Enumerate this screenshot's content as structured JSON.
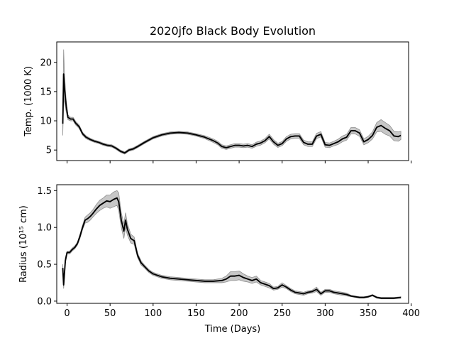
{
  "chart_data": {
    "type": "line",
    "title": "2020jfo Black Body Evolution",
    "xlabel": "Time (Days)",
    "xlim": [
      -12,
      397
    ],
    "xticks": [
      0,
      50,
      100,
      150,
      200,
      250,
      300,
      350,
      400
    ],
    "panels": [
      {
        "ylabel": "Temp. (1000 K)",
        "ylim": [
          3.2,
          23.5
        ],
        "yticks": [
          5,
          10,
          15,
          20
        ],
        "show_xtick_labels": false,
        "series": [
          {
            "color": "#000000",
            "band_color": "#bdbdbd",
            "x": [
              -5,
              -4,
              -3,
              -1,
              1,
              4,
              7,
              10,
              14,
              18,
              22,
              27,
              32,
              37,
              42,
              47,
              52,
              57,
              62,
              67,
              72,
              77,
              82,
              90,
              100,
              110,
              120,
              130,
              140,
              150,
              160,
              170,
              175,
              180,
              185,
              190,
              195,
              200,
              205,
              210,
              215,
              220,
              225,
              230,
              235,
              240,
              245,
              250,
              255,
              260,
              265,
              270,
              275,
              280,
              285,
              290,
              295,
              300,
              305,
              310,
              315,
              320,
              325,
              330,
              335,
              340,
              345,
              350,
              355,
              360,
              365,
              370,
              375,
              380,
              385,
              388
            ],
            "y": [
              9.5,
              18.0,
              15.5,
              12.5,
              10.6,
              10.3,
              10.3,
              9.6,
              9.0,
              7.8,
              7.2,
              6.8,
              6.5,
              6.3,
              6.0,
              5.8,
              5.7,
              5.3,
              4.8,
              4.5,
              5.0,
              5.2,
              5.6,
              6.3,
              7.1,
              7.6,
              7.9,
              8.0,
              7.9,
              7.6,
              7.2,
              6.6,
              6.2,
              5.6,
              5.4,
              5.6,
              5.8,
              5.8,
              5.7,
              5.8,
              5.6,
              6.0,
              6.2,
              6.6,
              7.3,
              6.4,
              5.8,
              6.1,
              6.9,
              7.3,
              7.4,
              7.4,
              6.3,
              6.0,
              6.0,
              7.4,
              7.7,
              5.9,
              5.8,
              6.1,
              6.4,
              6.9,
              7.2,
              8.3,
              8.3,
              7.9,
              6.4,
              6.8,
              7.5,
              8.9,
              9.2,
              8.7,
              8.3,
              7.4,
              7.3,
              7.5
            ],
            "err": [
              2.0,
              4.2,
              2.5,
              1.0,
              0.4,
              0.3,
              0.3,
              0.3,
              0.3,
              0.25,
              0.25,
              0.2,
              0.2,
              0.2,
              0.2,
              0.2,
              0.2,
              0.2,
              0.2,
              0.2,
              0.2,
              0.2,
              0.2,
              0.2,
              0.2,
              0.2,
              0.2,
              0.2,
              0.2,
              0.2,
              0.25,
              0.3,
              0.3,
              0.3,
              0.3,
              0.3,
              0.3,
              0.3,
              0.3,
              0.3,
              0.3,
              0.35,
              0.35,
              0.35,
              0.4,
              0.4,
              0.35,
              0.35,
              0.4,
              0.4,
              0.4,
              0.4,
              0.4,
              0.4,
              0.4,
              0.45,
              0.45,
              0.4,
              0.4,
              0.4,
              0.45,
              0.5,
              0.5,
              0.55,
              0.55,
              0.55,
              0.5,
              0.55,
              0.6,
              0.8,
              1.0,
              1.0,
              0.9,
              0.8,
              0.8,
              0.7
            ]
          }
        ]
      },
      {
        "ylabel": "Radius (10¹⁵ cm)",
        "ylim": [
          -0.03,
          1.58
        ],
        "yticks": [
          0.0,
          0.5,
          1.0,
          1.5
        ],
        "show_xtick_labels": true,
        "series": [
          {
            "color": "#000000",
            "band_color": "#bdbdbd",
            "x": [
              -5,
              -4,
              -2,
              0,
              3,
              6,
              9,
              12,
              15,
              18,
              21,
              24,
              27,
              30,
              34,
              38,
              42,
              46,
              50,
              54,
              58,
              60,
              63,
              66,
              68,
              70,
              74,
              78,
              82,
              86,
              90,
              95,
              100,
              110,
              120,
              130,
              140,
              150,
              160,
              170,
              180,
              185,
              190,
              195,
              200,
              205,
              210,
              215,
              220,
              225,
              230,
              235,
              240,
              245,
              250,
              255,
              260,
              265,
              270,
              275,
              280,
              285,
              290,
              295,
              300,
              305,
              310,
              315,
              320,
              325,
              330,
              335,
              340,
              345,
              350,
              355,
              360,
              365,
              370,
              375,
              380,
              388
            ],
            "y": [
              0.45,
              0.22,
              0.55,
              0.66,
              0.66,
              0.7,
              0.73,
              0.78,
              0.88,
              1.0,
              1.1,
              1.12,
              1.15,
              1.19,
              1.25,
              1.3,
              1.33,
              1.36,
              1.35,
              1.38,
              1.4,
              1.35,
              1.1,
              0.95,
              1.1,
              0.98,
              0.85,
              0.82,
              0.62,
              0.52,
              0.47,
              0.41,
              0.37,
              0.33,
              0.31,
              0.3,
              0.29,
              0.28,
              0.27,
              0.27,
              0.28,
              0.3,
              0.34,
              0.34,
              0.35,
              0.32,
              0.3,
              0.28,
              0.3,
              0.25,
              0.23,
              0.21,
              0.17,
              0.18,
              0.22,
              0.19,
              0.15,
              0.12,
              0.11,
              0.1,
              0.12,
              0.13,
              0.16,
              0.1,
              0.14,
              0.14,
              0.12,
              0.11,
              0.1,
              0.09,
              0.07,
              0.06,
              0.05,
              0.05,
              0.06,
              0.08,
              0.05,
              0.04,
              0.04,
              0.04,
              0.04,
              0.05
            ],
            "err": [
              0.05,
              0.05,
              0.04,
              0.02,
              0.02,
              0.02,
              0.02,
              0.02,
              0.03,
              0.03,
              0.04,
              0.05,
              0.05,
              0.05,
              0.06,
              0.07,
              0.07,
              0.08,
              0.09,
              0.1,
              0.1,
              0.12,
              0.1,
              0.1,
              0.1,
              0.08,
              0.06,
              0.05,
              0.03,
              0.03,
              0.02,
              0.02,
              0.02,
              0.02,
              0.02,
              0.02,
              0.02,
              0.02,
              0.02,
              0.02,
              0.03,
              0.04,
              0.06,
              0.06,
              0.06,
              0.05,
              0.04,
              0.04,
              0.04,
              0.03,
              0.03,
              0.03,
              0.02,
              0.02,
              0.03,
              0.02,
              0.02,
              0.02,
              0.02,
              0.02,
              0.02,
              0.02,
              0.03,
              0.02,
              0.02,
              0.02,
              0.02,
              0.02,
              0.02,
              0.02,
              0.01,
              0.01,
              0.01,
              0.01,
              0.01,
              0.01,
              0.01,
              0.01,
              0.01,
              0.01,
              0.01,
              0.01
            ]
          }
        ]
      }
    ]
  }
}
